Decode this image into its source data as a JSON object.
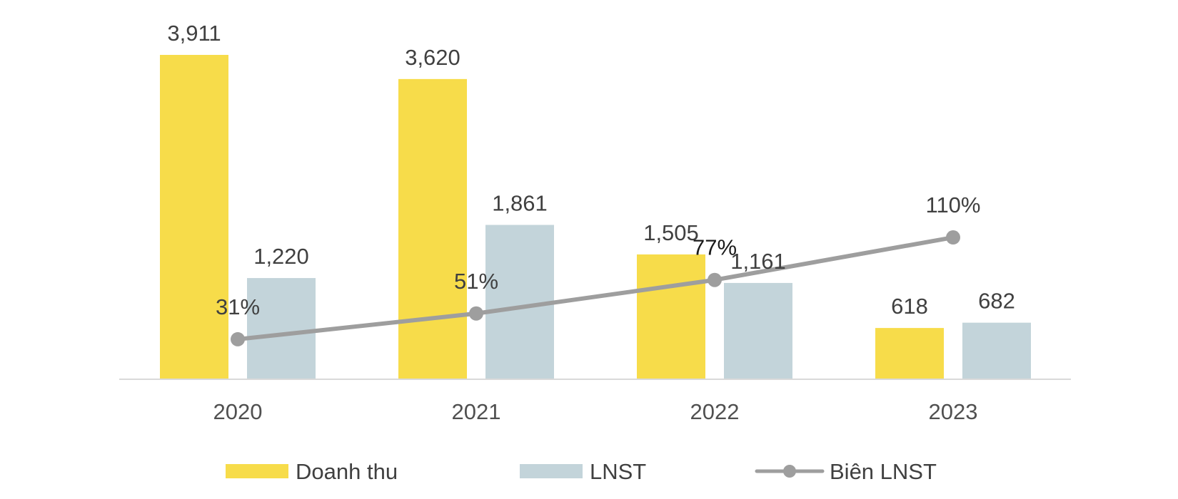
{
  "chart_data": {
    "type": "bar",
    "categories": [
      "2020",
      "2021",
      "2022",
      "2023"
    ],
    "series": [
      {
        "name": "Doanh thu",
        "type": "bar",
        "values": [
          3911,
          3620,
          1505,
          618
        ],
        "labels": [
          "3,911",
          "3,620",
          "1,505",
          "618"
        ],
        "color": "#F7DC4A"
      },
      {
        "name": "LNST",
        "type": "bar",
        "values": [
          1220,
          1861,
          1161,
          682
        ],
        "labels": [
          "1,220",
          "1,861",
          "1,161",
          "682"
        ],
        "color": "#C3D4DA"
      },
      {
        "name": "Biên LNST",
        "type": "line",
        "values": [
          31,
          51,
          77,
          110
        ],
        "labels": [
          "31%",
          "51%",
          "77%",
          "110%"
        ],
        "unit": "%",
        "color": "#9E9E9E"
      }
    ],
    "ylim_bars": [
      0,
      3911
    ],
    "ylim_line": [
      0,
      250
    ],
    "grid": false,
    "legend_position": "bottom"
  }
}
